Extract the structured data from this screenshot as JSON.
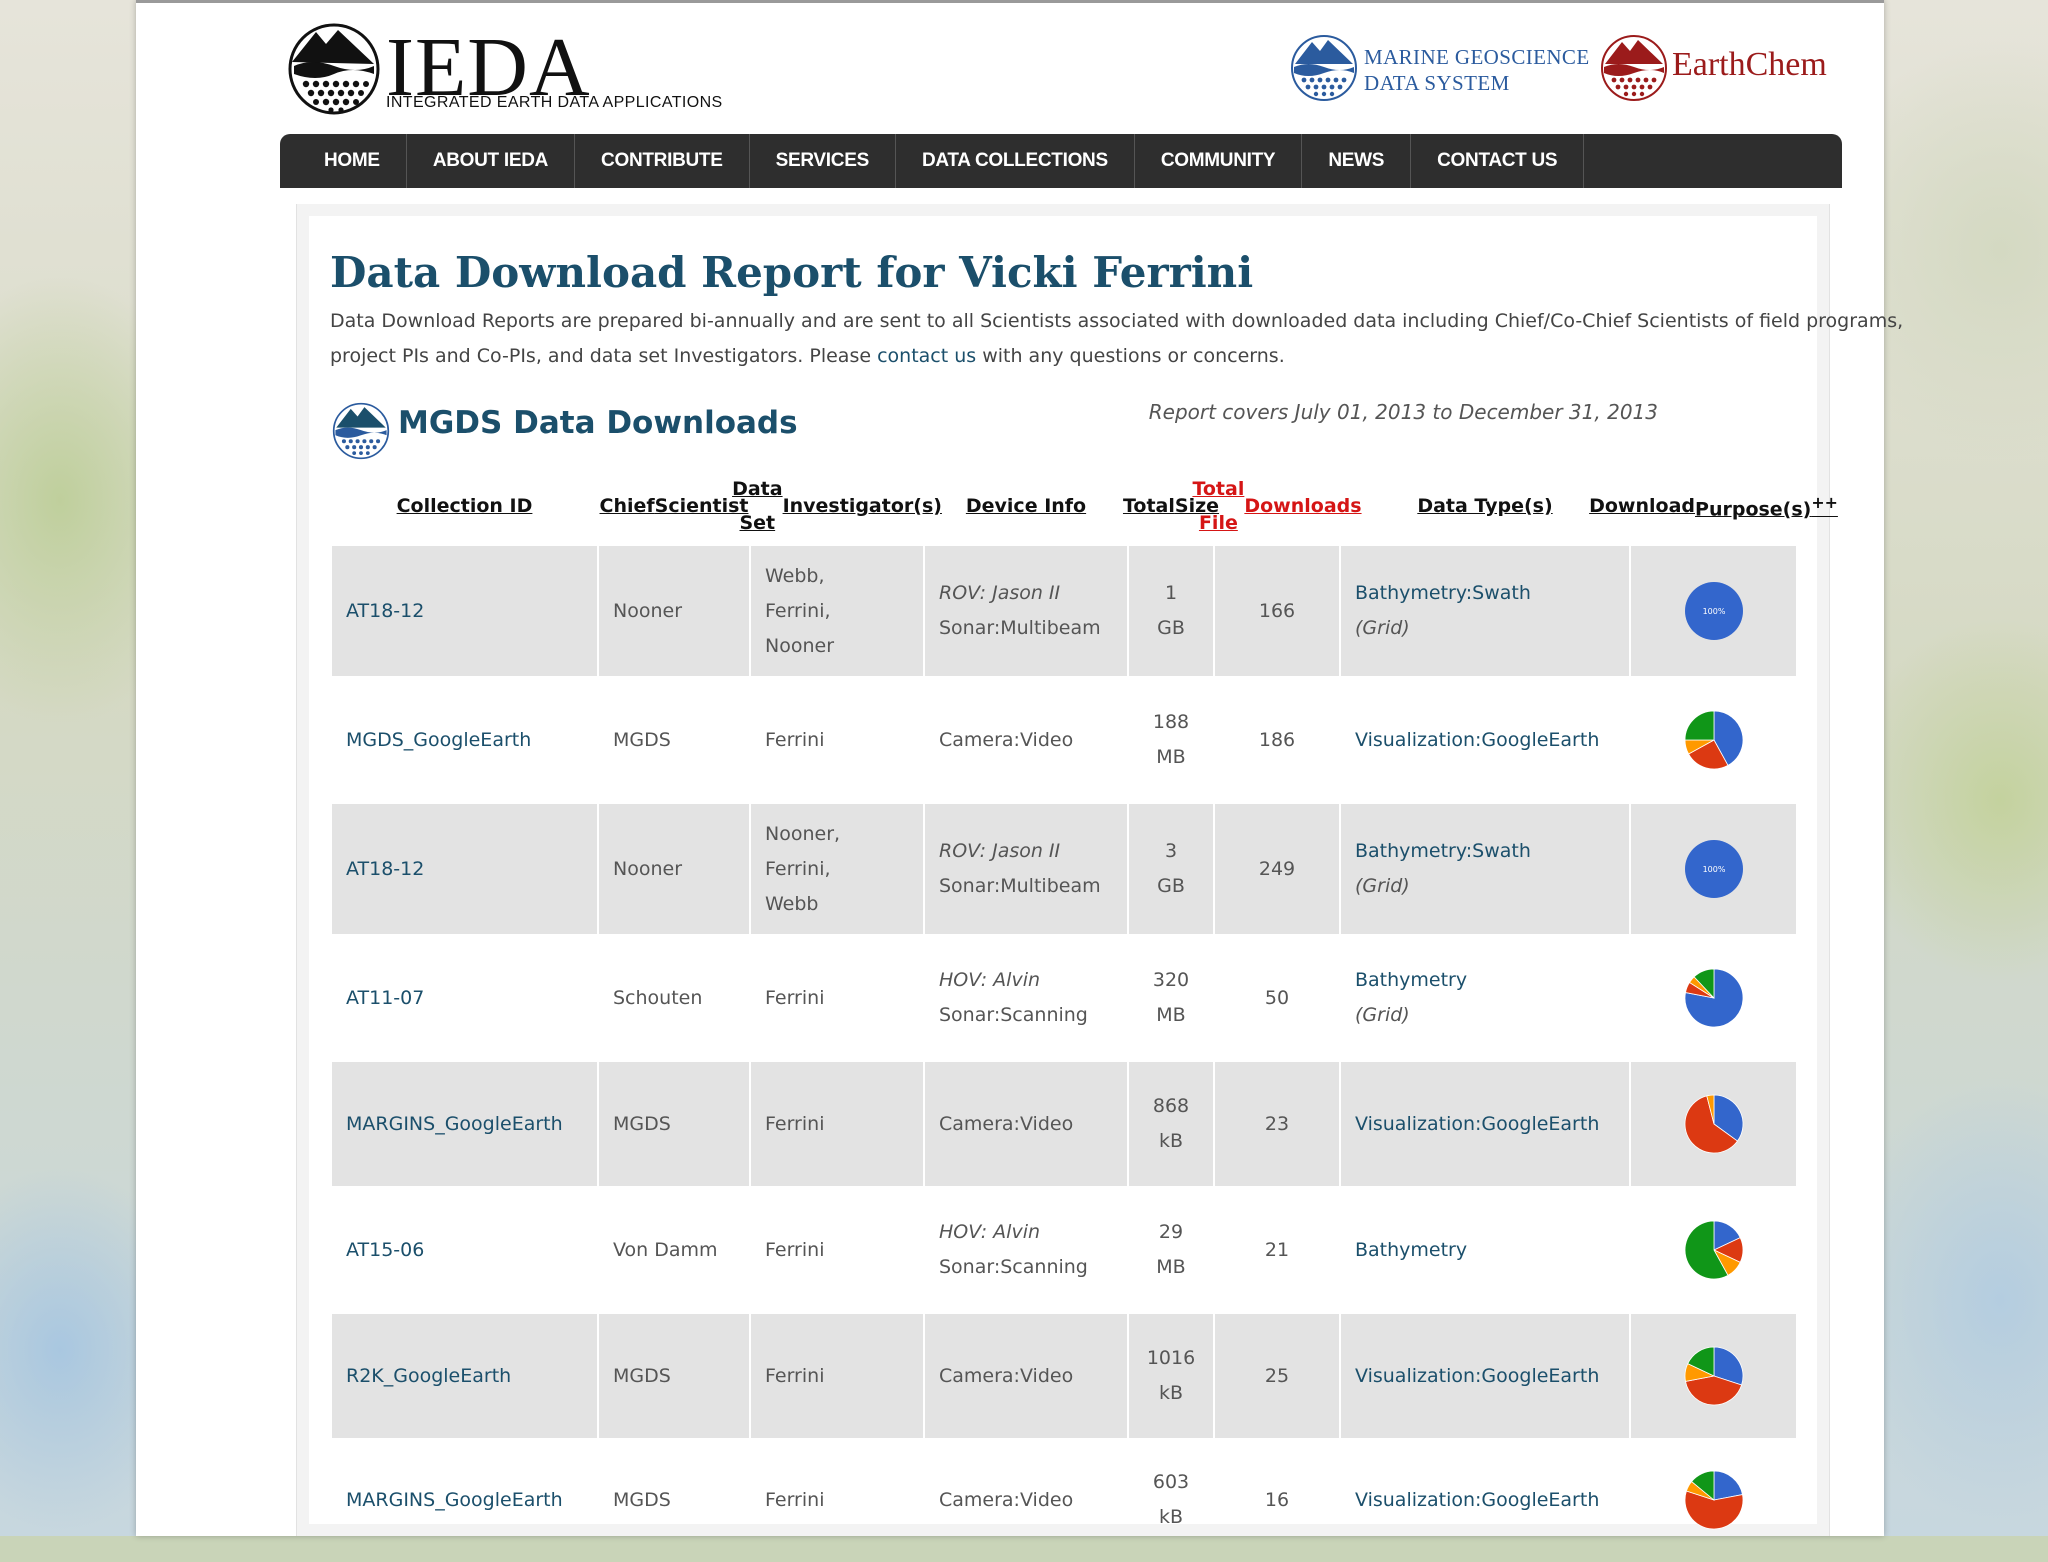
{
  "header": {
    "logo_main": "IEDA",
    "logo_main_sub": "INTEGRATED EARTH DATA APPLICATIONS",
    "logo_mgds_line1": "MARINE GEOSCIENCE",
    "logo_mgds_line2": "DATA SYSTEM",
    "logo_earthchem": "EarthChem"
  },
  "nav": [
    "HOME",
    "ABOUT IEDA",
    "CONTRIBUTE",
    "SERVICES",
    "DATA COLLECTIONS",
    "COMMUNITY",
    "NEWS",
    "CONTACT US"
  ],
  "page": {
    "title": "Data Download Report for Vicki Ferrini",
    "intro_1": "Data Download Reports are prepared bi-annually and are sent to all Scientists associated with downloaded data including Chief/Co-Chief Scientists of field programs, project PIs and Co-PIs, and data set Investigators. Please ",
    "intro_link": "contact us",
    "intro_2": " with any questions or concerns."
  },
  "section": {
    "title": "MGDS Data Downloads",
    "report_covers": "Report covers July 01, 2013 to December 31, 2013"
  },
  "table": {
    "headers": {
      "collection_id": "Collection ID",
      "chief_scientist_1": "Chief",
      "chief_scientist_2": "Scientist",
      "investigators_1": "Data Set",
      "investigators_2": "Investigator(s)",
      "device_info": "Device Info",
      "total_size_1": "Total",
      "total_size_2": "Size",
      "downloads_1": "Total File",
      "downloads_2": "Downloads",
      "data_types": "Data Type(s)",
      "purpose_1": "Download",
      "purpose_2": "Purpose(s)",
      "purpose_sup": "++"
    },
    "rows": [
      {
        "id": "AT18-12",
        "chief": "Nooner",
        "investigators": [
          "Webb,",
          "Ferrini,",
          "Nooner"
        ],
        "device_italic": "ROV: Jason II",
        "device_plain": "Sonar:Multibeam",
        "size_num": "1",
        "size_unit": "GB",
        "downloads": "166",
        "type_main": "Bathymetry:Swath",
        "type_sub": "(Grid)",
        "pie_label": "100%",
        "pie": [
          {
            "v": 1,
            "c": "#3366cc"
          }
        ]
      },
      {
        "id": "MGDS_GoogleEarth",
        "chief": "MGDS",
        "investigators": [
          "Ferrini"
        ],
        "device_italic": "",
        "device_plain": "Camera:Video",
        "size_num": "188",
        "size_unit": "MB",
        "downloads": "186",
        "type_main": "Visualization:GoogleEarth",
        "type_sub": "",
        "pie_label": "",
        "pie": [
          {
            "v": 0.42,
            "c": "#3366cc"
          },
          {
            "v": 0.25,
            "c": "#dc3912"
          },
          {
            "v": 0.08,
            "c": "#ff9900"
          },
          {
            "v": 0.25,
            "c": "#109618"
          }
        ]
      },
      {
        "id": "AT18-12",
        "chief": "Nooner",
        "investigators": [
          "Nooner,",
          "Ferrini,",
          "Webb"
        ],
        "device_italic": "ROV: Jason II",
        "device_plain": "Sonar:Multibeam",
        "size_num": "3",
        "size_unit": "GB",
        "downloads": "249",
        "type_main": "Bathymetry:Swath",
        "type_sub": "(Grid)",
        "pie_label": "100%",
        "pie": [
          {
            "v": 1,
            "c": "#3366cc"
          }
        ]
      },
      {
        "id": "AT11-07",
        "chief": "Schouten",
        "investigators": [
          "Ferrini"
        ],
        "device_italic": "HOV: Alvin",
        "device_plain": "Sonar:Scanning",
        "size_num": "320",
        "size_unit": "MB",
        "downloads": "50",
        "type_main": "Bathymetry",
        "type_sub": "(Grid)",
        "pie_label": "",
        "pie": [
          {
            "v": 0.78,
            "c": "#3366cc"
          },
          {
            "v": 0.06,
            "c": "#dc3912"
          },
          {
            "v": 0.04,
            "c": "#ff9900"
          },
          {
            "v": 0.12,
            "c": "#109618"
          }
        ]
      },
      {
        "id": "MARGINS_GoogleEarth",
        "chief": "MGDS",
        "investigators": [
          "Ferrini"
        ],
        "device_italic": "",
        "device_plain": "Camera:Video",
        "size_num": "868",
        "size_unit": "kB",
        "downloads": "23",
        "type_main": "Visualization:GoogleEarth",
        "type_sub": "",
        "pie_label": "",
        "pie": [
          {
            "v": 0.35,
            "c": "#3366cc"
          },
          {
            "v": 0.61,
            "c": "#dc3912"
          },
          {
            "v": 0.04,
            "c": "#ff9900"
          }
        ]
      },
      {
        "id": "AT15-06",
        "chief": "Von Damm",
        "investigators": [
          "Ferrini"
        ],
        "device_italic": "HOV: Alvin",
        "device_plain": "Sonar:Scanning",
        "size_num": "29",
        "size_unit": "MB",
        "downloads": "21",
        "type_main": "Bathymetry",
        "type_sub": "",
        "pie_label": "",
        "pie": [
          {
            "v": 0.18,
            "c": "#3366cc"
          },
          {
            "v": 0.14,
            "c": "#dc3912"
          },
          {
            "v": 0.1,
            "c": "#ff9900"
          },
          {
            "v": 0.58,
            "c": "#109618"
          }
        ]
      },
      {
        "id": "R2K_GoogleEarth",
        "chief": "MGDS",
        "investigators": [
          "Ferrini"
        ],
        "device_italic": "",
        "device_plain": "Camera:Video",
        "size_num": "1016",
        "size_unit": "kB",
        "downloads": "25",
        "type_main": "Visualization:GoogleEarth",
        "type_sub": "",
        "pie_label": "",
        "pie": [
          {
            "v": 0.3,
            "c": "#3366cc"
          },
          {
            "v": 0.42,
            "c": "#dc3912"
          },
          {
            "v": 0.1,
            "c": "#ff9900"
          },
          {
            "v": 0.18,
            "c": "#109618"
          }
        ]
      },
      {
        "id": "MARGINS_GoogleEarth",
        "chief": "MGDS",
        "investigators": [
          "Ferrini"
        ],
        "device_italic": "",
        "device_plain": "Camera:Video",
        "size_num": "603",
        "size_unit": "kB",
        "downloads": "16",
        "type_main": "Visualization:GoogleEarth",
        "type_sub": "",
        "pie_label": "",
        "pie": [
          {
            "v": 0.22,
            "c": "#3366cc"
          },
          {
            "v": 0.58,
            "c": "#dc3912"
          },
          {
            "v": 0.06,
            "c": "#ff9900"
          },
          {
            "v": 0.14,
            "c": "#109618"
          }
        ]
      }
    ]
  }
}
